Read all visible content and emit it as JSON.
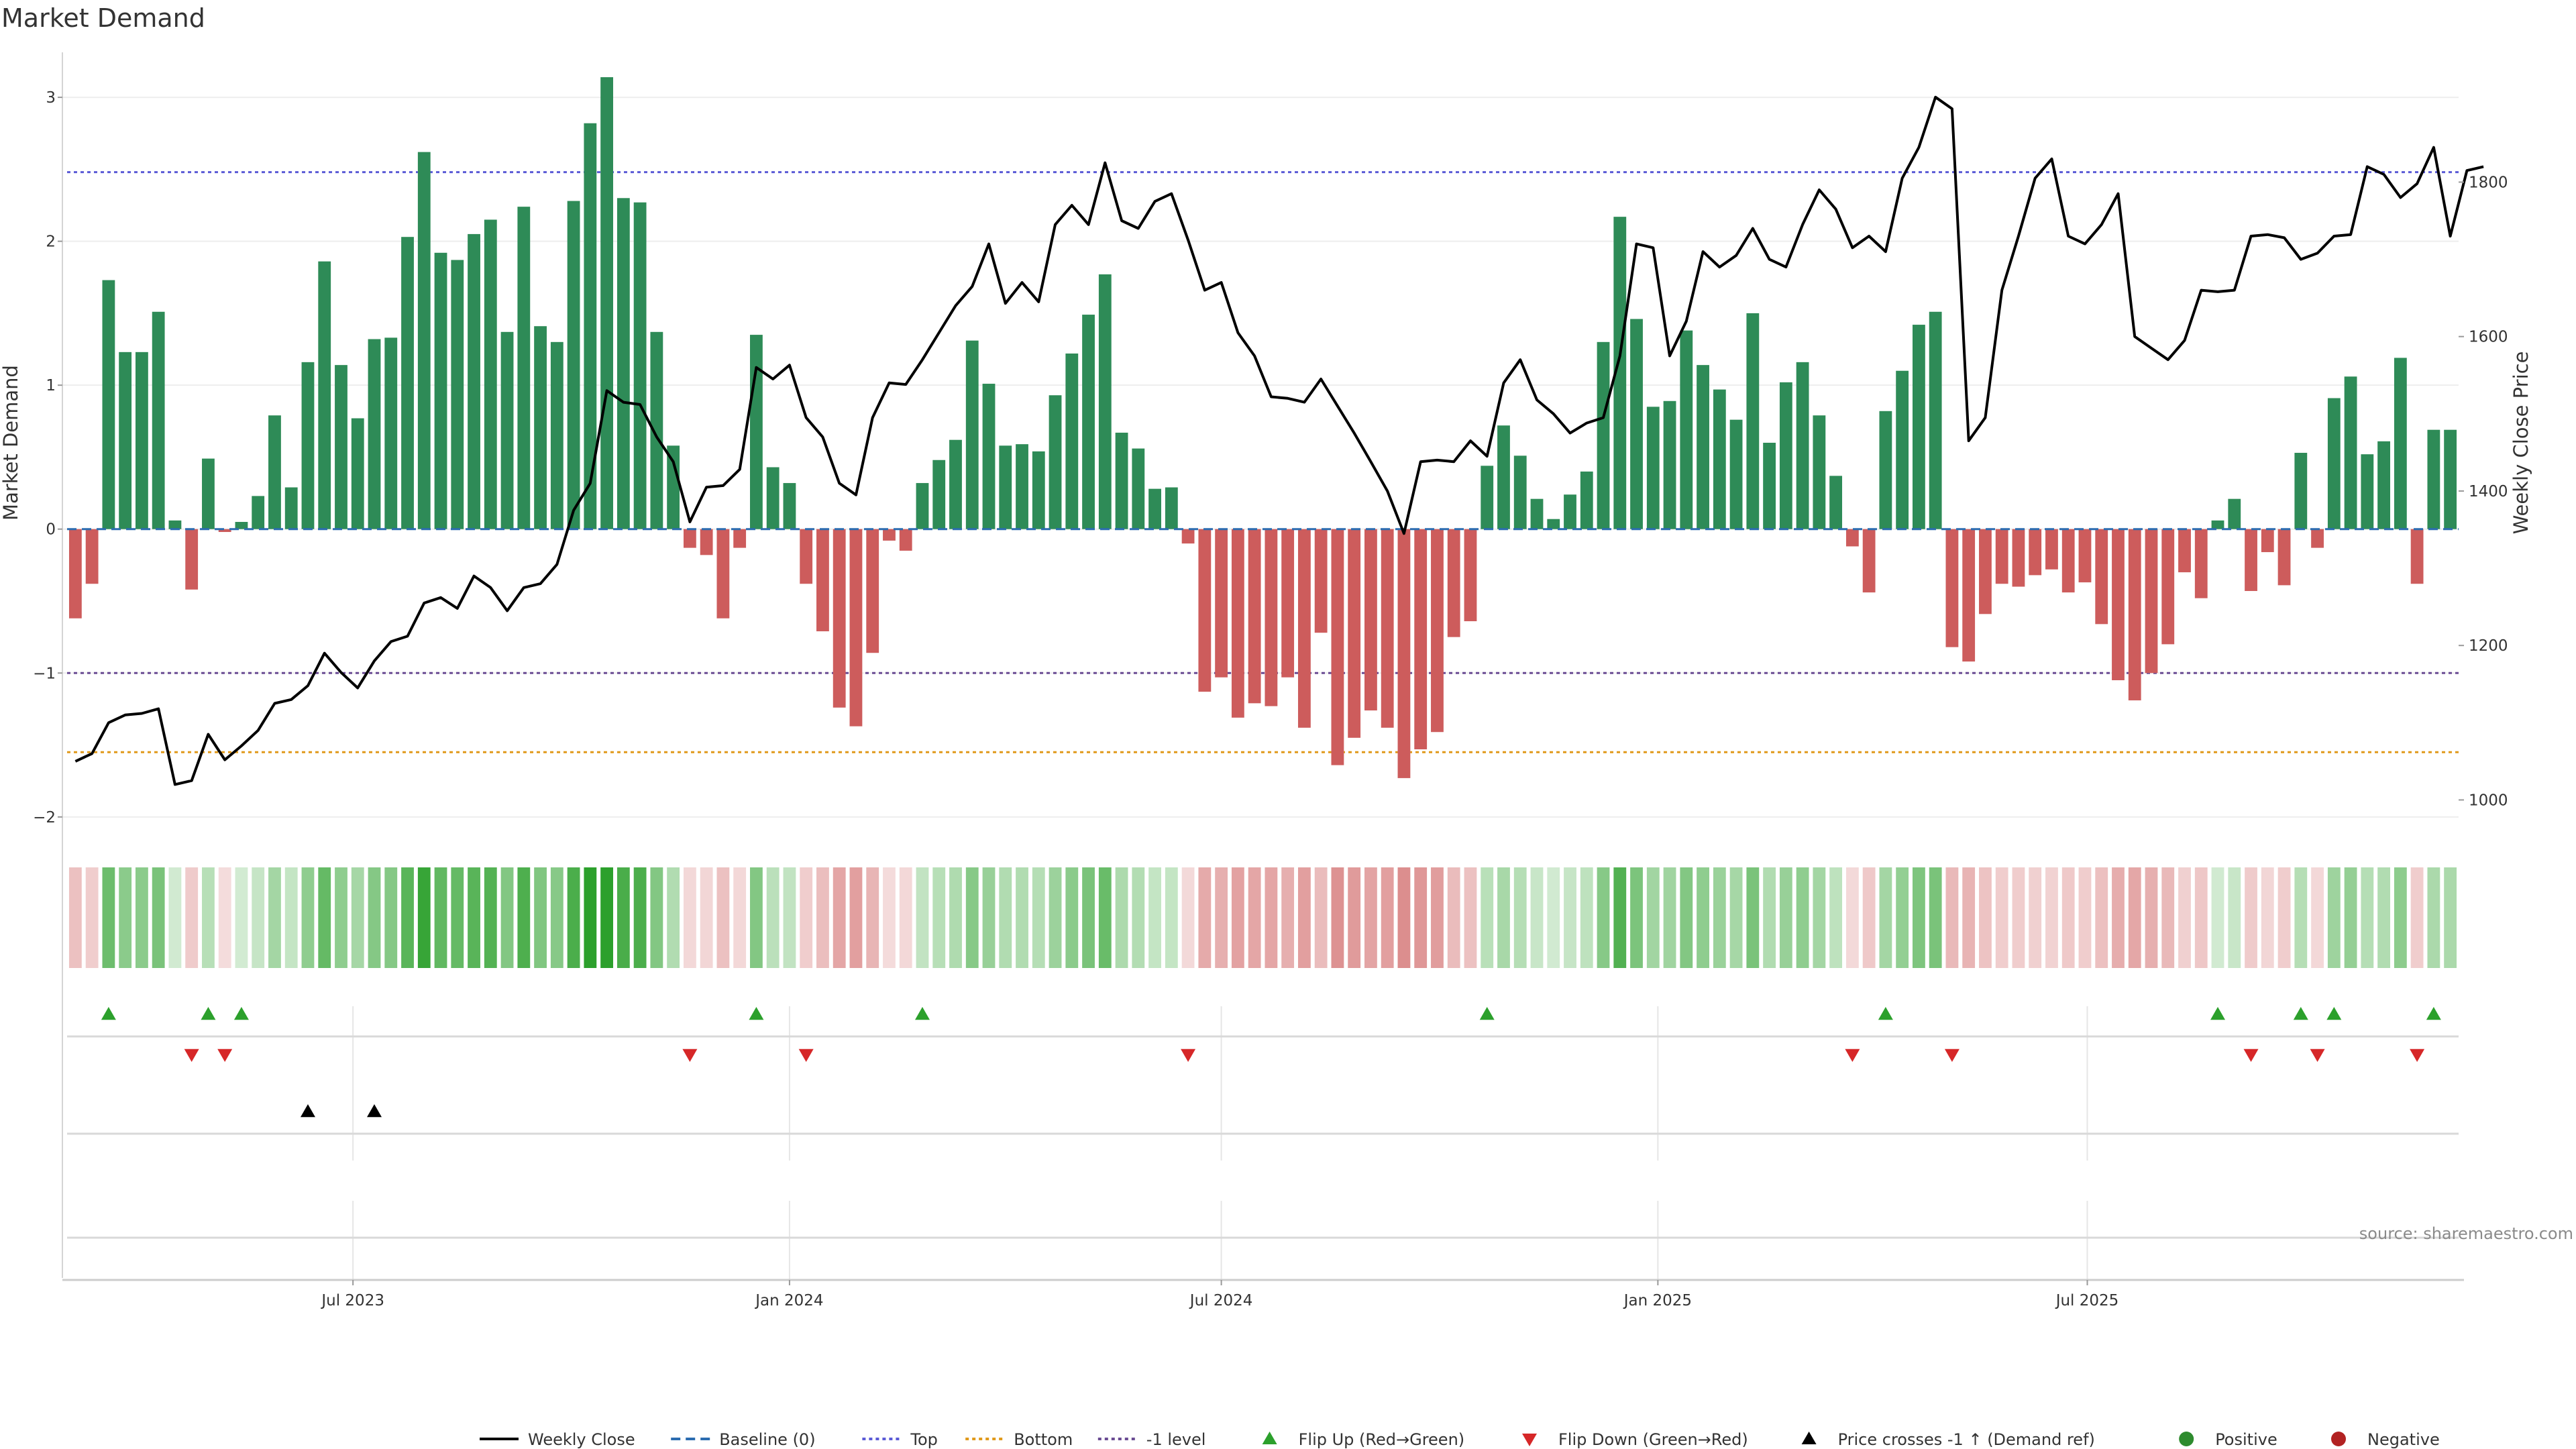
{
  "chart_data": {
    "type": "bar",
    "title": "Market Demand",
    "ylabel": "Market Demand",
    "y2label": "Weekly Close Price",
    "ylim": [
      -2.15,
      3.35
    ],
    "y_ticks": [
      3,
      2,
      1,
      0,
      -1,
      -2
    ],
    "y_tick_labels": [
      "3",
      "2",
      "1",
      "0",
      "−1",
      "−2"
    ],
    "y2lim": [
      950,
      1975
    ],
    "y2_ticks": [
      1800,
      1600,
      1400,
      1200,
      1000
    ],
    "y2_tick_labels": [
      "1800",
      "1600",
      "1400",
      "1200",
      "1000"
    ],
    "x_start": "2023-03-06",
    "x_step_days": 7,
    "x_ticks": [
      {
        "label": "Jul 2023",
        "date": "2023-07-01"
      },
      {
        "label": "Jan 2024",
        "date": "2024-01-01"
      },
      {
        "label": "Jul 2024",
        "date": "2024-07-01"
      },
      {
        "label": "Jan 2025",
        "date": "2025-01-01"
      },
      {
        "label": "Jul 2025",
        "date": "2025-07-01"
      }
    ],
    "reference_lines": [
      {
        "name": "Top",
        "value": 2.48,
        "color": "#5b5bd6"
      },
      {
        "name": "-1 level",
        "value": -1.0,
        "color": "#6a4c93"
      },
      {
        "name": "Bottom",
        "value": -1.55,
        "color": "#e09a1c"
      }
    ],
    "colors": {
      "positive": "#2e8b57",
      "negative": "#cd5c5c",
      "close": "#000000",
      "flip_up": "#2ca02c",
      "flip_down": "#d62728"
    },
    "demand": [
      -0.62,
      -0.38,
      1.73,
      1.23,
      1.23,
      1.51,
      0.06,
      -0.42,
      0.49,
      -0.02,
      0.05,
      0.23,
      0.79,
      0.29,
      1.16,
      1.86,
      1.14,
      0.77,
      1.32,
      1.33,
      2.03,
      2.62,
      1.92,
      1.87,
      2.05,
      2.15,
      1.37,
      2.24,
      1.41,
      1.3,
      2.28,
      2.82,
      3.14,
      2.3,
      2.27,
      1.37,
      0.58,
      -0.13,
      -0.18,
      -0.62,
      -0.13,
      1.35,
      0.43,
      0.32,
      -0.38,
      -0.71,
      -1.24,
      -1.37,
      -0.86,
      -0.08,
      -0.15,
      0.32,
      0.48,
      0.62,
      1.31,
      1.01,
      0.58,
      0.59,
      0.54,
      0.93,
      1.22,
      1.49,
      1.77,
      0.67,
      0.56,
      0.28,
      0.29,
      -0.1,
      -1.13,
      -1.03,
      -1.31,
      -1.21,
      -1.23,
      -1.03,
      -1.38,
      -0.72,
      -1.64,
      -1.45,
      -1.26,
      -1.38,
      -1.73,
      -1.53,
      -1.41,
      -0.75,
      -0.64,
      0.44,
      0.72,
      0.51,
      0.21,
      0.07,
      0.24,
      0.4,
      1.3,
      2.17,
      1.46,
      0.85,
      0.89,
      1.38,
      1.14,
      0.97,
      0.76,
      1.5,
      0.6,
      1.02,
      1.16,
      0.79,
      0.37,
      -0.12,
      -0.44,
      0.82,
      1.1,
      1.42,
      1.51,
      -0.82,
      -0.92,
      -0.59,
      -0.38,
      -0.4,
      -0.32,
      -0.28,
      -0.44,
      -0.37,
      -0.66,
      -1.05,
      -1.19,
      -1.0,
      -0.8,
      -0.3,
      -0.48,
      0.06,
      0.21,
      -0.43,
      -0.16,
      -0.39,
      0.53,
      -0.13,
      0.91,
      1.06,
      0.52,
      0.61,
      1.19,
      -0.38,
      0.69,
      0.69
    ],
    "weekly_close": [
      1050,
      1060,
      1100,
      1110,
      1112,
      1118,
      1020,
      1025,
      1085,
      1052,
      1070,
      1090,
      1125,
      1130,
      1148,
      1190,
      1165,
      1145,
      1180,
      1205,
      1212,
      1255,
      1262,
      1248,
      1290,
      1275,
      1245,
      1275,
      1280,
      1305,
      1375,
      1410,
      1530,
      1515,
      1512,
      1470,
      1438,
      1360,
      1405,
      1407,
      1428,
      1560,
      1545,
      1563,
      1495,
      1470,
      1410,
      1395,
      1495,
      1540,
      1538,
      1570,
      1605,
      1640,
      1665,
      1720,
      1643,
      1670,
      1645,
      1745,
      1770,
      1745,
      1825,
      1750,
      1740,
      1775,
      1785,
      1725,
      1660,
      1670,
      1605,
      1575,
      1522,
      1520,
      1515,
      1545,
      1510,
      1475,
      1438,
      1400,
      1345,
      1438,
      1440,
      1438,
      1465,
      1445,
      1540,
      1570,
      1518,
      1500,
      1475,
      1488,
      1495,
      1575,
      1720,
      1715,
      1575,
      1620,
      1710,
      1690,
      1705,
      1740,
      1700,
      1690,
      1745,
      1790,
      1765,
      1715,
      1730,
      1710,
      1805,
      1845,
      1910,
      1895,
      1465,
      1495,
      1660,
      1730,
      1805,
      1830,
      1730,
      1720,
      1745,
      1785,
      1600,
      1585,
      1570,
      1595,
      1660,
      1658,
      1660,
      1730,
      1732,
      1728,
      1700,
      1708,
      1730,
      1732,
      1820,
      1810,
      1780,
      1798,
      1845,
      1730,
      1815,
      1820
    ],
    "flip_up_idx": [
      2,
      8,
      10,
      41,
      51,
      85,
      109,
      129,
      134,
      136,
      142
    ],
    "flip_down_idx": [
      7,
      9,
      37,
      44,
      67,
      107,
      113,
      131,
      135,
      141
    ],
    "price_cross_idx": [
      14,
      18
    ],
    "legend": [
      {
        "key": "close",
        "label": "Weekly Close"
      },
      {
        "key": "baseline",
        "label": "Baseline (0)"
      },
      {
        "key": "top",
        "label": "Top"
      },
      {
        "key": "bottom",
        "label": "Bottom"
      },
      {
        "key": "minus1",
        "label": "-1 level"
      },
      {
        "key": "flip_up",
        "label": "Flip Up (Red→Green)"
      },
      {
        "key": "flip_down",
        "label": "Flip Down (Green→Red)"
      },
      {
        "key": "price_cross",
        "label": "Price crosses -1 ↑ (Demand ref)"
      },
      {
        "key": "positive",
        "label": "Positive"
      },
      {
        "key": "negative",
        "label": "Negative"
      }
    ],
    "source": "source: sharemaestro.com"
  }
}
